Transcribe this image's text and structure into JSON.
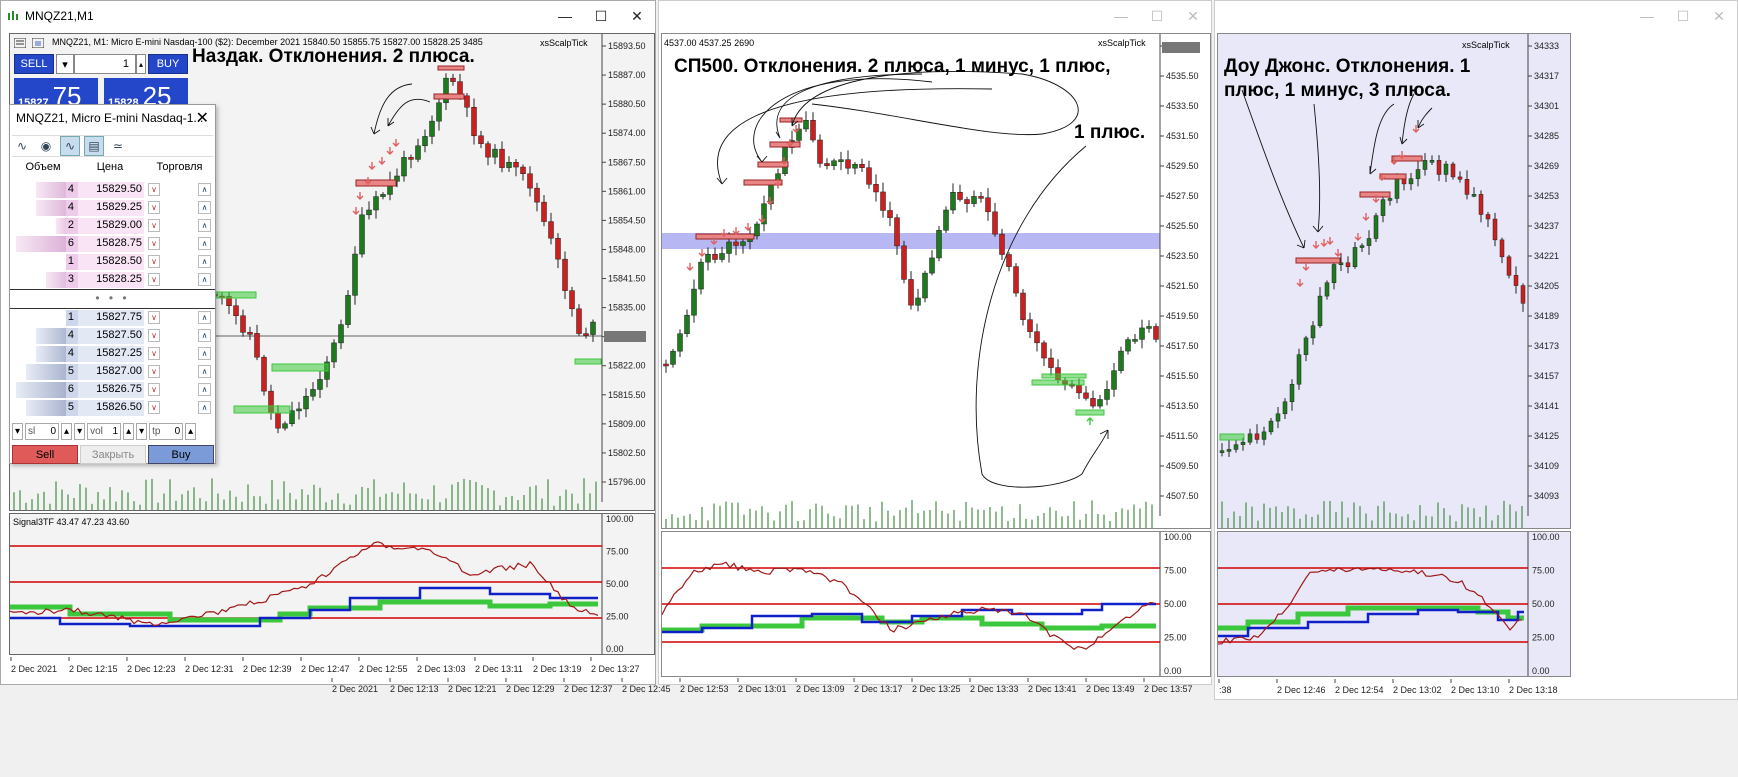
{
  "window1": {
    "title": "MNQZ21,M1",
    "chart_info": "MNQZ21, M1:  Micro E-mini Nasdaq-100 ($2): December 2021     15840.50  15855.75  15827.00  15828.25   3485",
    "scalp_label": "xsScalpTick",
    "annotation": "Наздак. Отклонения. 2 плюса.",
    "price_ticks": [
      "15893.50",
      "15887.00",
      "15880.50",
      "15874.00",
      "15867.50",
      "15861.00",
      "15854.50",
      "15848.00",
      "15841.50",
      "15835.00",
      "15828.25",
      "15822.00",
      "15815.50",
      "15809.00",
      "15802.50",
      "15796.00"
    ],
    "osc_label": "Signal3TF 43.47 47.23 43.60",
    "osc_ticks": [
      "100.00",
      "75.00",
      "50.00",
      "25.00",
      "0.00"
    ],
    "time_ticks": [
      "2 Dec 2021",
      "2 Dec 12:15",
      "2 Dec 12:23",
      "2 Dec 12:31",
      "2 Dec 12:39",
      "2 Dec 12:47",
      "2 Dec 12:55",
      "2 Dec 13:03",
      "2 Dec 13:11",
      "2 Dec 13:19",
      "2 Dec 13:27"
    ],
    "trade_panel": {
      "sell": "SELL",
      "buy": "BUY",
      "lot": "1",
      "bid_small": "15827",
      "bid_big": "75",
      "ask_small": "15828",
      "ask_big": "25"
    }
  },
  "dom": {
    "title": "MNQZ21, Micro E-mini Nasdaq-1...",
    "headers": [
      "Объем",
      "Цена",
      "Торговля"
    ],
    "ask_rows": [
      {
        "vol": "4",
        "price": "15829.50"
      },
      {
        "vol": "4",
        "price": "15829.25"
      },
      {
        "vol": "2",
        "price": "15829.00"
      },
      {
        "vol": "6",
        "price": "15828.75"
      },
      {
        "vol": "1",
        "price": "15828.50"
      },
      {
        "vol": "3",
        "price": "15828.25"
      }
    ],
    "bid_rows": [
      {
        "vol": "1",
        "price": "15827.75"
      },
      {
        "vol": "4",
        "price": "15827.50"
      },
      {
        "vol": "4",
        "price": "15827.25"
      },
      {
        "vol": "5",
        "price": "15827.00"
      },
      {
        "vol": "6",
        "price": "15826.75"
      },
      {
        "vol": "5",
        "price": "15826.50"
      }
    ],
    "dots": "• • •",
    "sl_label": "sl",
    "sl_value": "0",
    "vol_label": "vol",
    "vol_value": "1",
    "tp_label": "tp",
    "tp_value": "0",
    "sell": "Sell",
    "close": "Закрыть",
    "buy": "Buy"
  },
  "window2": {
    "chart_info": "4537.00  4537.25  2690",
    "scalp_label": "xsScalpTick",
    "annotation_line1": "СП500. Отклонения. 2 плюса, 1 минус, 1 плюс,",
    "annotation_line2": "1 плюс.",
    "price_ticks": [
      "4537.25",
      "4535.50",
      "4533.50",
      "4531.50",
      "4529.50",
      "4527.50",
      "4525.50",
      "4523.50",
      "4521.50",
      "4519.50",
      "4517.50",
      "4515.50",
      "4513.50",
      "4511.50",
      "4509.50",
      "4507.50"
    ],
    "osc_ticks": [
      "100.00",
      "75.00",
      "50.00",
      "25.00",
      "0.00"
    ],
    "time_ticks": [
      "2 Dec 2021",
      "2 Dec 12:13",
      "2 Dec 12:21",
      "2 Dec 12:29",
      "2 Dec 12:37",
      "2 Dec 12:45",
      "2 Dec 12:53",
      "2 Dec 13:01",
      "2 Dec 13:09",
      "2 Dec 13:17",
      "2 Dec 13:25",
      "2 Dec 13:33",
      "2 Dec 13:41",
      "2 Dec 13:49",
      "2 Dec 13:57"
    ]
  },
  "window3": {
    "scalp_label": "xsScalpTick",
    "annotation_line1": "Доу Джонс. Отклонения. 1",
    "annotation_line2": "плюс, 1 минус, 3 плюса.",
    "price_ticks": [
      "34333",
      "34317",
      "34301",
      "34285",
      "34269",
      "34253",
      "34237",
      "34221",
      "34205",
      "34189",
      "34173",
      "34157",
      "34141",
      "34125",
      "34109",
      "34093"
    ],
    "osc_ticks": [
      "100.00",
      "75.00",
      "50.00",
      "25.00",
      "0.00"
    ],
    "time_ticks": [
      ":38",
      "2 Dec 12:46",
      "2 Dec 12:54",
      "2 Dec 13:02",
      "2 Dec 13:10",
      "2 Dec 13:18"
    ]
  },
  "colors": {
    "bull": "#1f7a1f",
    "bear": "#cc1f1f",
    "blue_line": "#1020c8",
    "green_line": "#3cc83c",
    "osc_line": "#a01818",
    "level_red": "#d00000",
    "zone_blue": "#9999ee"
  }
}
